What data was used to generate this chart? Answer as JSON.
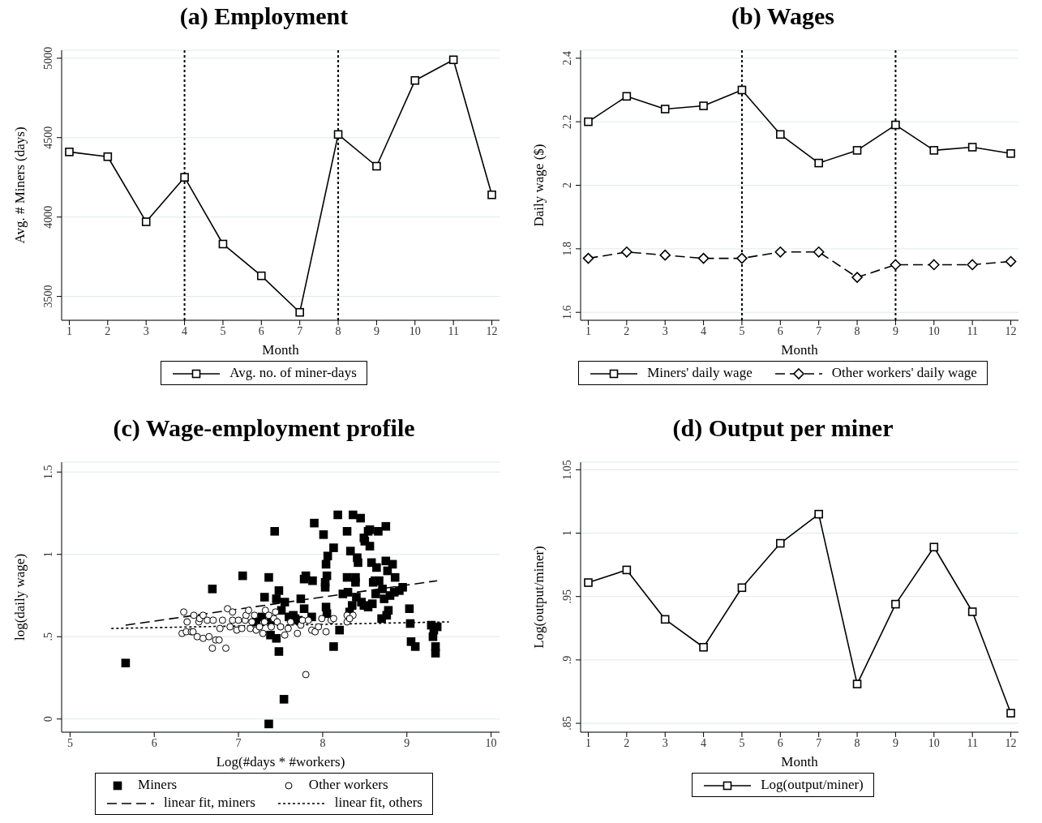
{
  "chart_data": [
    {
      "type": "line",
      "title": "(a) Employment",
      "xlabel": "Month",
      "ylabel": "Avg. # Miners (days)",
      "x": [
        1,
        2,
        3,
        4,
        5,
        6,
        7,
        8,
        9,
        10,
        11,
        12
      ],
      "series": [
        {
          "name": "Avg. no. of miner-days",
          "color": "#000000",
          "marker": "square",
          "line_style": "solid",
          "values": [
            4410,
            4380,
            3970,
            4250,
            3830,
            3630,
            3400,
            4520,
            4320,
            4860,
            4990,
            4140
          ]
        }
      ],
      "xlim": [
        0.8,
        12.2
      ],
      "xticks": [
        1,
        2,
        3,
        4,
        5,
        6,
        7,
        8,
        9,
        10,
        11,
        12
      ],
      "ylim": [
        3350,
        5050
      ],
      "yticks": [
        3500,
        4000,
        4500,
        5000
      ],
      "ref_lines": [
        {
          "axis": "x",
          "value": 4,
          "color": "#000000",
          "line_style": "dotted"
        },
        {
          "axis": "x",
          "value": 8,
          "color": "#000000",
          "line_style": "dotted"
        }
      ],
      "grid": "y",
      "legend": "bottom"
    },
    {
      "type": "line",
      "title": "(b) Wages",
      "xlabel": "Month",
      "ylabel": "Daily wage ($)",
      "x": [
        1,
        2,
        3,
        4,
        5,
        6,
        7,
        8,
        9,
        10,
        11,
        12
      ],
      "series": [
        {
          "name": "Miners' daily wage",
          "color": "#000000",
          "marker": "square",
          "line_style": "solid",
          "values": [
            2.2,
            2.28,
            2.24,
            2.25,
            2.3,
            2.16,
            2.07,
            2.11,
            2.19,
            2.11,
            2.12,
            2.1
          ]
        },
        {
          "name": "Other workers' daily wage",
          "color": "#000000",
          "marker": "diamond",
          "line_style": "dashed",
          "values": [
            1.77,
            1.79,
            1.78,
            1.77,
            1.77,
            1.79,
            1.79,
            1.71,
            1.75,
            1.75,
            1.75,
            1.76
          ]
        }
      ],
      "xlim": [
        0.8,
        12.2
      ],
      "xticks": [
        1,
        2,
        3,
        4,
        5,
        6,
        7,
        8,
        9,
        10,
        11,
        12
      ],
      "ylim": [
        1.575,
        2.425
      ],
      "yticks": [
        1.6,
        1.8,
        2,
        2.2,
        2.4
      ],
      "ref_lines": [
        {
          "axis": "x",
          "value": 5,
          "color": "#000000",
          "line_style": "dotted"
        },
        {
          "axis": "x",
          "value": 9,
          "color": "#000000",
          "line_style": "dotted"
        }
      ],
      "grid": "y",
      "legend": "bottom"
    },
    {
      "type": "scatter",
      "title": "(c) Wage-employment profile",
      "xlabel": "Log(#days * #workers)",
      "ylabel": "log(daily wage)",
      "series": [
        {
          "name": "Miners",
          "color": "#000000",
          "marker": "square",
          "x": [
            5.66,
            6.69,
            7.05,
            7.36,
            7.43,
            7.31,
            7.45,
            7.48,
            7.55,
            7.45,
            7.48,
            7.54,
            7.36,
            7.74,
            7.78,
            7.78,
            7.8,
            7.88,
            7.9,
            7.87,
            8.01,
            8.06,
            8.13,
            8.04,
            8.05,
            8.03,
            8.03,
            8.04,
            8.05,
            8.18,
            8.13,
            8.2,
            8.24,
            8.29,
            8.29,
            8.33,
            8.36,
            8.45,
            8.3,
            8.35,
            8.32,
            8.39,
            8.39,
            8.41,
            8.42,
            8.4,
            8.46,
            8.49,
            8.54,
            8.59,
            8.49,
            8.5,
            8.54,
            8.56,
            8.56,
            8.58,
            8.64,
            8.6,
            8.62,
            8.67,
            8.63,
            8.66,
            8.75,
            8.75,
            8.77,
            8.83,
            8.86,
            8.71,
            8.73,
            8.8,
            8.85,
            8.91,
            8.95,
            8.7,
            8.76,
            8.78,
            9.03,
            9.04,
            9.05,
            9.1,
            9.29,
            9.32,
            9.31,
            9.36,
            9.34,
            9.34,
            7.21,
            7.39,
            7.6,
            7.65,
            7.67,
            7.71,
            7.38,
            7.28,
            7.51
          ],
          "values": [
            0.34,
            0.79,
            0.87,
            0.86,
            1.14,
            0.74,
            0.73,
            0.78,
            0.71,
            0.49,
            0.41,
            0.12,
            -0.03,
            0.73,
            0.67,
            0.85,
            0.87,
            0.84,
            1.19,
            0.62,
            1.12,
            0.99,
            1.04,
            0.94,
            0.87,
            0.83,
            0.8,
            0.68,
            0.64,
            1.24,
            0.44,
            0.54,
            0.76,
            1.14,
            0.86,
            1.02,
            1.24,
            1.22,
            0.77,
            0.69,
            0.65,
            0.86,
            0.83,
            0.98,
            0.95,
            0.74,
            0.71,
            0.69,
            0.68,
            0.7,
            1.1,
            1.08,
            1.14,
            1.15,
            1.05,
            0.95,
            0.92,
            0.83,
            0.84,
            0.84,
            0.76,
            1.14,
            1.17,
            0.96,
            0.9,
            0.94,
            0.86,
            0.79,
            0.73,
            0.75,
            0.77,
            0.78,
            0.8,
            0.61,
            0.63,
            0.66,
            0.67,
            0.58,
            0.47,
            0.44,
            0.57,
            0.54,
            0.5,
            0.56,
            0.44,
            0.4,
            0.59,
            0.6,
            0.62,
            0.63,
            0.61,
            0.6,
            0.51,
            0.62,
            0.66
          ]
        },
        {
          "name": "Other workers",
          "color": "#000000",
          "marker": "circle",
          "x": [
            6.35,
            6.33,
            6.38,
            6.39,
            6.44,
            6.47,
            6.46,
            6.51,
            6.53,
            6.54,
            6.58,
            6.58,
            6.63,
            6.65,
            6.69,
            6.7,
            6.73,
            6.77,
            6.78,
            6.81,
            6.85,
            6.87,
            6.9,
            6.93,
            6.93,
            6.98,
            7.0,
            7.04,
            7.08,
            7.09,
            7.12,
            7.14,
            7.16,
            7.19,
            7.21,
            7.25,
            7.29,
            7.31,
            7.32,
            7.36,
            7.39,
            7.42,
            7.44,
            7.46,
            7.5,
            7.55,
            7.59,
            7.62,
            7.7,
            7.74,
            7.76,
            7.8,
            7.83,
            7.87,
            7.91,
            7.95,
            7.99,
            8.04,
            8.1,
            8.13,
            8.29,
            8.29,
            8.36,
            8.32
          ],
          "values": [
            0.65,
            0.52,
            0.53,
            0.59,
            0.53,
            0.63,
            0.53,
            0.5,
            0.59,
            0.61,
            0.63,
            0.49,
            0.6,
            0.5,
            0.43,
            0.6,
            0.48,
            0.48,
            0.55,
            0.6,
            0.43,
            0.67,
            0.56,
            0.65,
            0.6,
            0.54,
            0.6,
            0.55,
            0.6,
            0.63,
            0.66,
            0.55,
            0.59,
            0.63,
            0.54,
            0.56,
            0.52,
            0.59,
            0.66,
            0.63,
            0.56,
            0.61,
            0.65,
            0.59,
            0.56,
            0.51,
            0.55,
            0.59,
            0.52,
            0.57,
            0.6,
            0.27,
            0.6,
            0.54,
            0.53,
            0.56,
            0.61,
            0.53,
            0.6,
            0.61,
            0.59,
            0.63,
            0.63,
            0.61
          ]
        },
        {
          "name": "linear fit, miners",
          "type": "line",
          "color": "#000000",
          "marker": "none",
          "line_style": "dashed",
          "x": [
            5.66,
            9.36
          ],
          "values": [
            0.57,
            0.84
          ]
        },
        {
          "name": "linear fit, others",
          "type": "line",
          "color": "#000000",
          "marker": "none",
          "line_style": "dotted",
          "x": [
            5.49,
            9.5
          ],
          "values": [
            0.55,
            0.59
          ]
        }
      ],
      "xlim": [
        4.9,
        10.1
      ],
      "xticks": [
        5,
        6,
        7,
        8,
        9,
        10
      ],
      "ylim": [
        -0.08,
        1.56
      ],
      "yticks": [
        0,
        {
          "value": 0.5,
          "label": ".5"
        },
        1,
        1.5
      ],
      "grid": "y",
      "legend": "bottom"
    },
    {
      "type": "line",
      "title": "(d) Output per miner",
      "xlabel": "Month",
      "ylabel": "Log(output/miner)",
      "x": [
        1,
        2,
        3,
        4,
        5,
        6,
        7,
        8,
        9,
        10,
        11,
        12
      ],
      "series": [
        {
          "name": "Log(output/miner)",
          "color": "#000000",
          "marker": "square",
          "line_style": "solid",
          "values": [
            0.961,
            0.971,
            0.932,
            0.91,
            0.957,
            0.992,
            1.015,
            0.881,
            0.944,
            0.989,
            0.938,
            0.858
          ]
        }
      ],
      "xlim": [
        0.8,
        12.2
      ],
      "xticks": [
        1,
        2,
        3,
        4,
        5,
        6,
        7,
        8,
        9,
        10,
        11,
        12
      ],
      "ylim": [
        0.843,
        1.056
      ],
      "yticks": [
        {
          "value": 0.85,
          "label": ".85"
        },
        {
          "value": 0.9,
          "label": ".9"
        },
        {
          "value": 0.95,
          "label": ".95"
        },
        1,
        1.05
      ],
      "grid": "y",
      "legend": "bottom"
    }
  ]
}
